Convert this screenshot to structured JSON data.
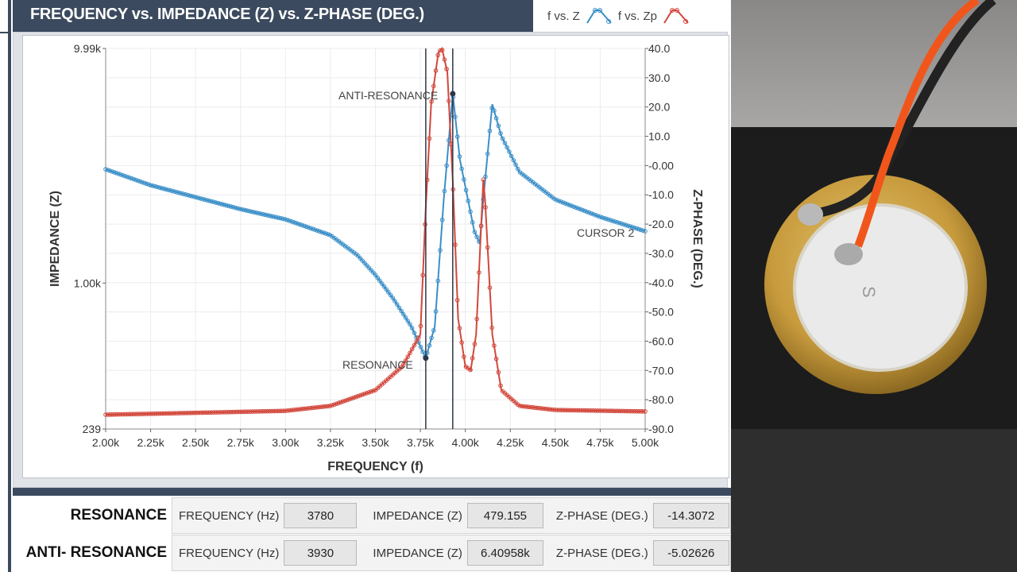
{
  "header": {
    "title": "FREQUENCY vs. IMPEDANCE (Z) vs. Z-PHASE (DEG.)",
    "legend": [
      {
        "label": "f vs. Z",
        "color": "#3a8fc8"
      },
      {
        "label": "f vs. Zp",
        "color": "#d2473b"
      }
    ]
  },
  "chart_data": {
    "type": "line",
    "title": "FREQUENCY vs. IMPEDANCE (Z) vs. Z-PHASE (DEG.)",
    "xlabel": "FREQUENCY (f)",
    "ylabel": "IMPEDANCE (Z)",
    "y2label": "Z-PHASE (DEG.)",
    "xlim": [
      2000,
      5000
    ],
    "ylim": [
      239,
      9990
    ],
    "yscale": "log",
    "y2lim": [
      -90,
      40
    ],
    "xticks": [
      "2.00k",
      "2.25k",
      "2.50k",
      "2.75k",
      "3.00k",
      "3.25k",
      "3.50k",
      "3.75k",
      "4.00k",
      "4.25k",
      "4.50k",
      "4.75k",
      "5.00k"
    ],
    "yticks": [
      "239",
      "1.00k",
      "9.99k"
    ],
    "y2ticks": [
      "-90.0",
      "-80.0",
      "-70.0",
      "-60.0",
      "-50.0",
      "-40.0",
      "-30.0",
      "-20.0",
      "-10.0",
      "-0.00",
      "10.0",
      "20.0",
      "30.0",
      "40.0"
    ],
    "grid": true,
    "legend": "top-right",
    "series": [
      {
        "name": "f vs. Z",
        "axis": "left",
        "color": "#3a8fc8",
        "x": [
          2000,
          2250,
          2500,
          2750,
          3000,
          3250,
          3400,
          3500,
          3600,
          3700,
          3780,
          3830,
          3880,
          3930,
          3970,
          4050,
          4080,
          4100,
          4150,
          4200,
          4300,
          4500,
          4750,
          5000
        ],
        "y": [
          3055,
          2612,
          2323,
          2066,
          1868,
          1600,
          1315,
          1083,
          857,
          653,
          479,
          653,
          2270,
          6410,
          3350,
          1663,
          1479,
          2270,
          5780,
          4236,
          2980,
          2270,
          1914,
          1663
        ]
      },
      {
        "name": "f vs. Zp",
        "axis": "right",
        "color": "#d2473b",
        "x": [
          2000,
          2250,
          3000,
          3250,
          3500,
          3650,
          3750,
          3780,
          3810,
          3850,
          3870,
          3900,
          3930,
          3960,
          4000,
          4030,
          4060,
          4100,
          4110,
          4150,
          4200,
          4300,
          4500,
          5000
        ],
        "y": [
          -85.1,
          -84.8,
          -83.8,
          -82.1,
          -76.7,
          -68.6,
          -57.7,
          -14.3,
          21,
          38.6,
          40,
          31.9,
          -5.0,
          -52.3,
          -68.6,
          -69.9,
          -57.7,
          -4.8,
          -12,
          -57.7,
          -76.7,
          -82.1,
          -83.5,
          -84
        ]
      }
    ],
    "cursors": [
      {
        "label": "RESONANCE",
        "x": 3780,
        "z": 479.155
      },
      {
        "label": "ANTI-RESONANCE",
        "x": 3930,
        "z": 6409.58
      }
    ],
    "annotations": [
      "ANTI-RESONANCE",
      "RESONANCE",
      "CURSOR 2"
    ]
  },
  "results": {
    "freq_label": "FREQUENCY (Hz)",
    "imp_label": "IMPEDANCE (Z)",
    "phase_label": "Z-PHASE (DEG.)",
    "resonance": {
      "label": "RESONANCE",
      "frequency": "3780",
      "impedance": "479.155",
      "phase": "-14.3072"
    },
    "anti_resonance": {
      "label": "ANTI- RESONANCE",
      "frequency": "3930",
      "impedance": "6.40958k",
      "phase": "-5.02626"
    }
  },
  "photo": {
    "marking": "S"
  }
}
